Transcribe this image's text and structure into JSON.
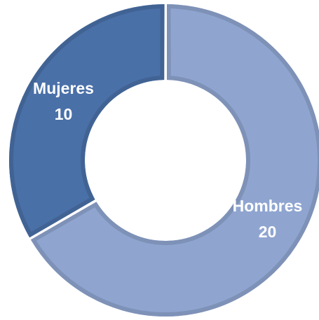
{
  "chart_data": {
    "type": "donut",
    "categories": [
      "Hombres",
      "Mujeres"
    ],
    "values": [
      20,
      10
    ],
    "colors": [
      "#8fa5d0",
      "#4a70a8"
    ]
  }
}
